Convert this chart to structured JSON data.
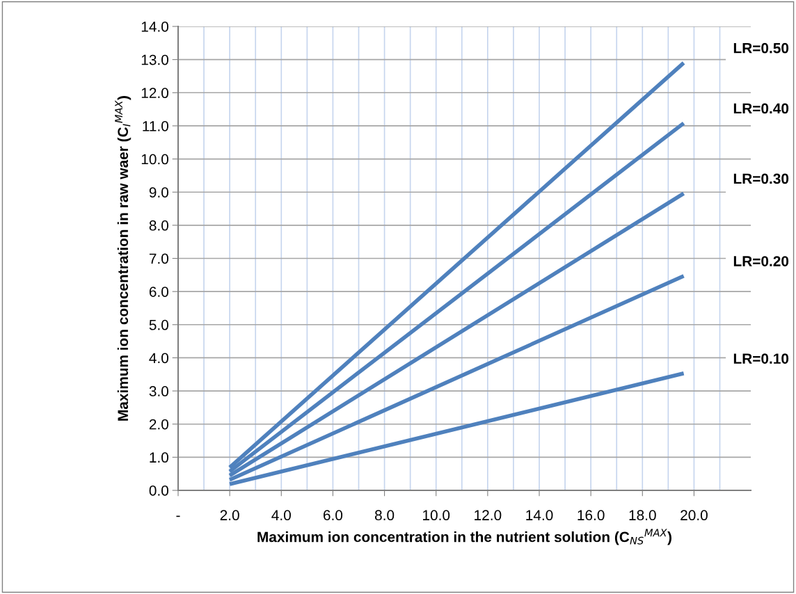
{
  "chart_data": {
    "type": "line",
    "xlabel": "Maximum ion concentration in the nutrient solution (C$_{NS}$$^{MAX}$)",
    "ylabel": "Maximum ion concentration in raw waer (C$_{I}$$^{MAX}$)",
    "x": [
      2.0,
      19.6
    ],
    "series": [
      {
        "name": "LR=0.50",
        "color": "#4f81bd",
        "values": [
          0.69,
          12.9
        ]
      },
      {
        "name": "LR=0.40",
        "color": "#4f81bd",
        "values": [
          0.57,
          11.08
        ]
      },
      {
        "name": "LR=0.30",
        "color": "#4f81bd",
        "values": [
          0.45,
          8.96
        ]
      },
      {
        "name": "LR=0.20",
        "color": "#4f81bd",
        "values": [
          0.32,
          6.47
        ]
      },
      {
        "name": "LR=0.10",
        "color": "#4f81bd",
        "values": [
          0.19,
          3.53
        ]
      }
    ],
    "xlim": [
      0,
      22.2
    ],
    "xticks": [
      {
        "value": 0,
        "label": "-"
      },
      {
        "value": 1,
        "label": null
      },
      {
        "value": 2,
        "label": "2.0"
      },
      {
        "value": 3,
        "label": null
      },
      {
        "value": 4,
        "label": "4.0"
      },
      {
        "value": 5,
        "label": null
      },
      {
        "value": 6,
        "label": "6.0"
      },
      {
        "value": 7,
        "label": null
      },
      {
        "value": 8,
        "label": "8.0"
      },
      {
        "value": 9,
        "label": null
      },
      {
        "value": 10,
        "label": "10.0"
      },
      {
        "value": 11,
        "label": null
      },
      {
        "value": 12,
        "label": "12.0"
      },
      {
        "value": 13,
        "label": null
      },
      {
        "value": 14,
        "label": "14.0"
      },
      {
        "value": 15,
        "label": null
      },
      {
        "value": 16,
        "label": "16.0"
      },
      {
        "value": 17,
        "label": null
      },
      {
        "value": 18,
        "label": "18.0"
      },
      {
        "value": 19,
        "label": null
      },
      {
        "value": 20,
        "label": "20.0"
      },
      {
        "value": 21,
        "label": null
      }
    ],
    "ylim": [
      0,
      14
    ],
    "yticks": [
      {
        "value": 0,
        "label": "0.0"
      },
      {
        "value": 1,
        "label": "1.0"
      },
      {
        "value": 2,
        "label": "2.0"
      },
      {
        "value": 3,
        "label": "3.0"
      },
      {
        "value": 4,
        "label": "4.0"
      },
      {
        "value": 5,
        "label": "5.0"
      },
      {
        "value": 6,
        "label": "6.0"
      },
      {
        "value": 7,
        "label": "7.0"
      },
      {
        "value": 8,
        "label": "8.0"
      },
      {
        "value": 9,
        "label": "9.0"
      },
      {
        "value": 10,
        "label": "10.0"
      },
      {
        "value": 11,
        "label": "11.0"
      },
      {
        "value": 12,
        "label": "12.0"
      },
      {
        "value": 13,
        "label": "13.0"
      },
      {
        "value": 14,
        "label": "14.0"
      }
    ],
    "grid": true,
    "legend": false,
    "marker": "none",
    "line_style": "solid"
  }
}
